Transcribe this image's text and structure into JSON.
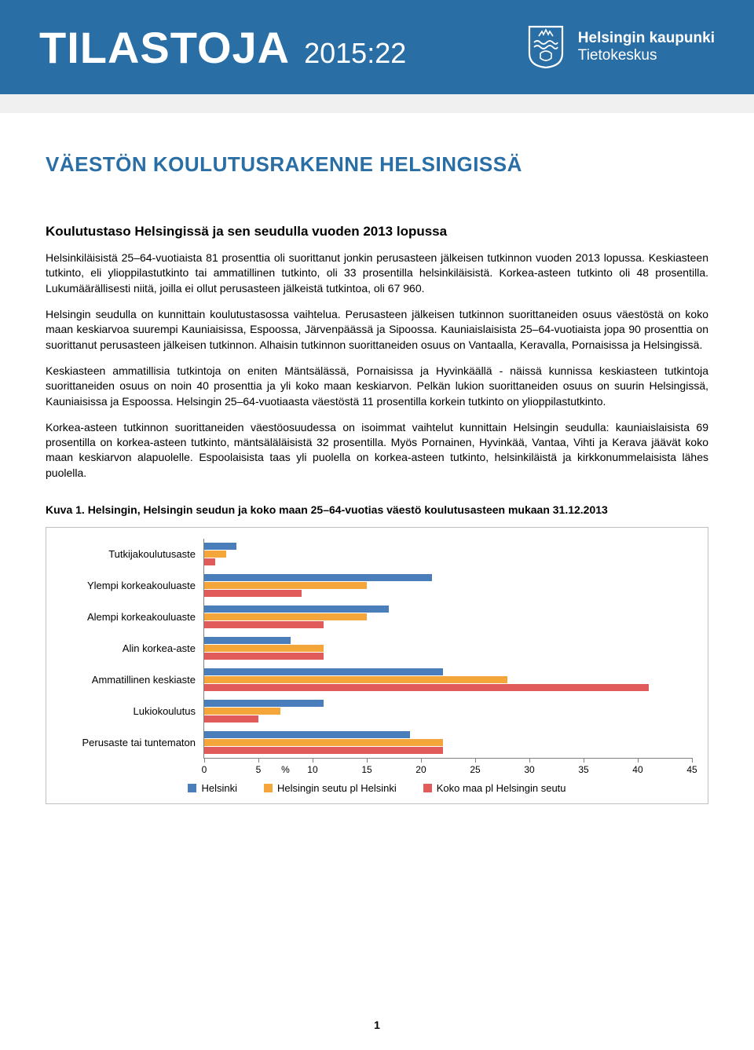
{
  "header": {
    "brand": "TILASTOJA",
    "issue": "2015:22",
    "org_line1": "Helsingin kaupunki",
    "org_line2": "Tietokeskus"
  },
  "document": {
    "title": "VÄESTÖN KOULUTUSRAKENNE HELSINGISSÄ",
    "section_heading": "Koulutustaso Helsingissä ja sen seudulla vuoden 2013 lopussa",
    "paragraphs": [
      "Helsinkiläisistä 25–64-vuotiaista 81 prosenttia oli suorittanut jonkin perusasteen jälkeisen tutkinnon vuoden 2013 lopussa. Keskiasteen tutkinto, eli ylioppilastutkinto tai ammatillinen tutkinto, oli 33 prosentilla helsinkiläisistä. Korkea-asteen tutkinto oli 48 prosentilla. Lukumäärällisesti niitä, joilla ei ollut perusasteen jälkeistä tutkintoa, oli 67 960.",
      "Helsingin seudulla on kunnittain koulutustasossa vaihtelua. Perusasteen jälkeisen tutkinnon suorittaneiden osuus väestöstä on koko maan keskiarvoa suurempi Kauniaisissa, Espoossa, Järvenpäässä ja Sipoossa. Kauniaislaisista 25–64-vuotiaista jopa 90 prosenttia on suorittanut perusasteen jälkeisen tutkinnon. Alhaisin tutkinnon suorittaneiden osuus on Vantaalla, Keravalla, Pornaisissa ja Helsingissä.",
      "Keskiasteen ammatillisia tutkintoja on eniten Mäntsälässä, Pornaisissa ja Hyvinkäällä - näissä kunnissa keskiasteen tutkintoja suorittaneiden osuus on noin 40 prosenttia ja yli koko maan keskiarvon. Pelkän lukion suorittaneiden osuus on suurin Helsingissä, Kauniaisissa ja Espoossa. Helsingin 25–64-vuotiaasta väestöstä 11 prosentilla korkein tutkinto on ylioppilastutkinto.",
      "Korkea-asteen tutkinnon suorittaneiden väestöosuudessa on isoimmat vaihtelut kunnittain Helsingin seudulla: kauniaislaisista 69 prosentilla on korkea-asteen tutkinto, mäntsäläläisistä 32 prosentilla. Myös Pornainen, Hyvinkää, Vantaa, Vihti ja Kerava jäävät koko maan keskiarvon alapuolelle. Espoolaisista taas yli puolella on korkea-asteen tutkinto, helsinkiläistä ja kirkkonummelaisista lähes puolella."
    ],
    "figure_caption": "Kuva 1. Helsingin, Helsingin seudun ja koko maan 25–64-vuotias väestö koulutusasteen mukaan 31.12.2013",
    "page_number": "1"
  },
  "chart": {
    "type": "bar",
    "categories": [
      "Tutkijakoulutusaste",
      "Ylempi korkeakouluaste",
      "Alempi korkeakouluaste",
      "Alin korkea-aste",
      "Ammatillinen keskiaste",
      "Lukiokoulutus",
      "Perusaste tai tuntematon"
    ],
    "series": [
      {
        "name": "Helsinki",
        "color": "#4a7ebb",
        "values": [
          3,
          21,
          17,
          8,
          22,
          11,
          19
        ]
      },
      {
        "name": "Helsingin seutu pl Helsinki",
        "color": "#f5a63a",
        "values": [
          2,
          15,
          15,
          11,
          28,
          7,
          22
        ]
      },
      {
        "name": "Koko maa pl Helsingin seutu",
        "color": "#e15b5b",
        "values": [
          1,
          9,
          11,
          11,
          41,
          5,
          22
        ]
      }
    ],
    "xaxis": {
      "min": 0,
      "max": 45,
      "step": 5,
      "label": "%"
    },
    "colors": {
      "border": "#bfbfbf",
      "axis": "#808080"
    }
  }
}
